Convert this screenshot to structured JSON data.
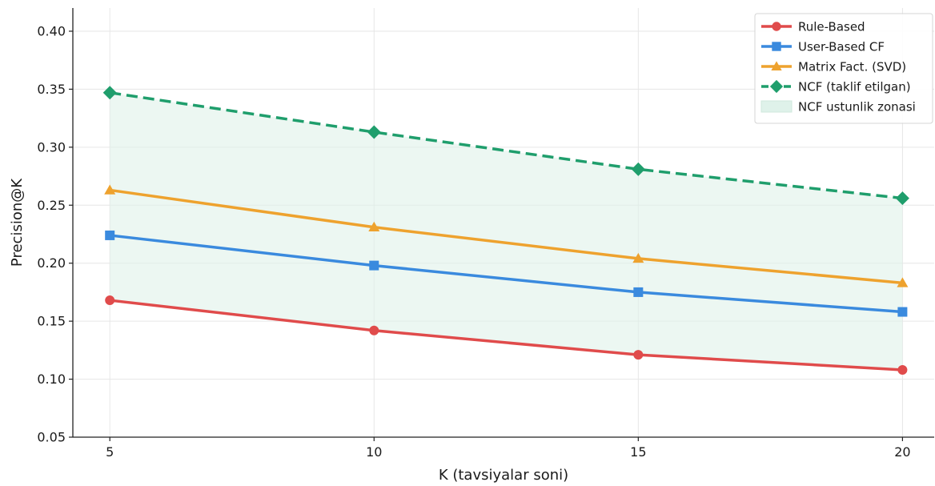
{
  "chart_data": {
    "type": "line",
    "xlabel": "K (tavsiyalar soni)",
    "ylabel": "Precision@K",
    "x": [
      5,
      10,
      15,
      20
    ],
    "xticks": [
      "5",
      "10",
      "15",
      "20"
    ],
    "xlim": [
      4.3,
      20.6
    ],
    "ylim": [
      0.05,
      0.42
    ],
    "yticks": [
      "0.05",
      "0.10",
      "0.15",
      "0.20",
      "0.25",
      "0.30",
      "0.35",
      "0.40"
    ],
    "grid": true,
    "legend_position": "top-right",
    "series": [
      {
        "name": "Rule-Based",
        "values": [
          0.168,
          0.142,
          0.121,
          0.108
        ],
        "color": "#e04b4b",
        "marker": "circle",
        "style": "solid"
      },
      {
        "name": "User-Based CF",
        "values": [
          0.224,
          0.198,
          0.175,
          0.158
        ],
        "color": "#3a8ade",
        "marker": "square",
        "style": "solid"
      },
      {
        "name": "Matrix Fact. (SVD)",
        "values": [
          0.263,
          0.231,
          0.204,
          0.183
        ],
        "color": "#eea22e",
        "marker": "triangle",
        "style": "solid"
      },
      {
        "name": "NCF (taklif etilgan)",
        "values": [
          0.347,
          0.313,
          0.281,
          0.256
        ],
        "color": "#1f9e6c",
        "marker": "diamond",
        "style": "dashed"
      }
    ],
    "shaded_region": {
      "name": "NCF ustunlik zonasi",
      "between": [
        "Rule-Based",
        "NCF (taklif etilgan)"
      ],
      "color": "#dff2ea"
    }
  }
}
